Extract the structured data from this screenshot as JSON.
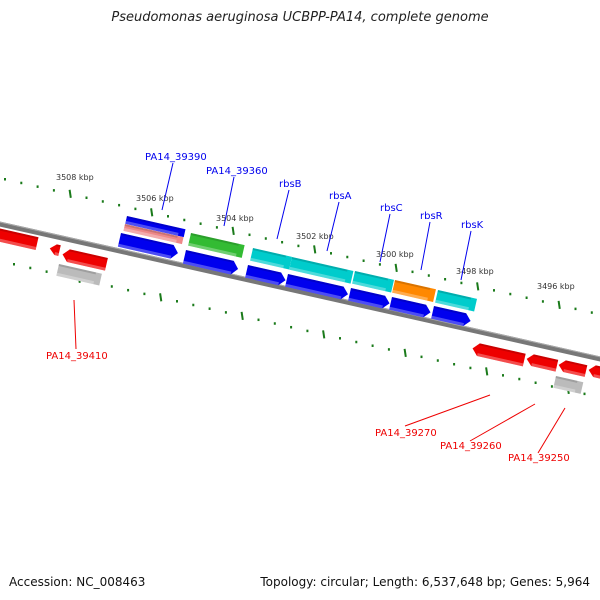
{
  "title": "Pseudomonas aeruginosa UCBPP-PA14, complete genome",
  "footer": {
    "accession": "Accession: NC_008463",
    "summary": "Topology: circular; Length: 6,537,648 bp; Genes: 5,964"
  },
  "ticks": [
    "3508 kbp",
    "3506 kbp",
    "3504 kbp",
    "3502 kbp",
    "3500 kbp",
    "3498 kbp",
    "3496 kbp"
  ],
  "labels_forward": [
    "PA14_39390",
    "PA14_39360",
    "rbsB",
    "rbsA",
    "rbsC",
    "rbsR",
    "rbsK"
  ],
  "labels_reverse": [
    "PA14_39410",
    "PA14_39270",
    "PA14_39260",
    "PA14_39250"
  ],
  "colors": {
    "forward": "#0000ee",
    "reverse": "#ee0000",
    "tick": "#1a7a1a",
    "backbone": "#777777",
    "cyan": "#00cccc",
    "green": "#33bb33",
    "orange": "#ff8800",
    "pink": "#ee8888",
    "gray": "#bbbbbb"
  }
}
